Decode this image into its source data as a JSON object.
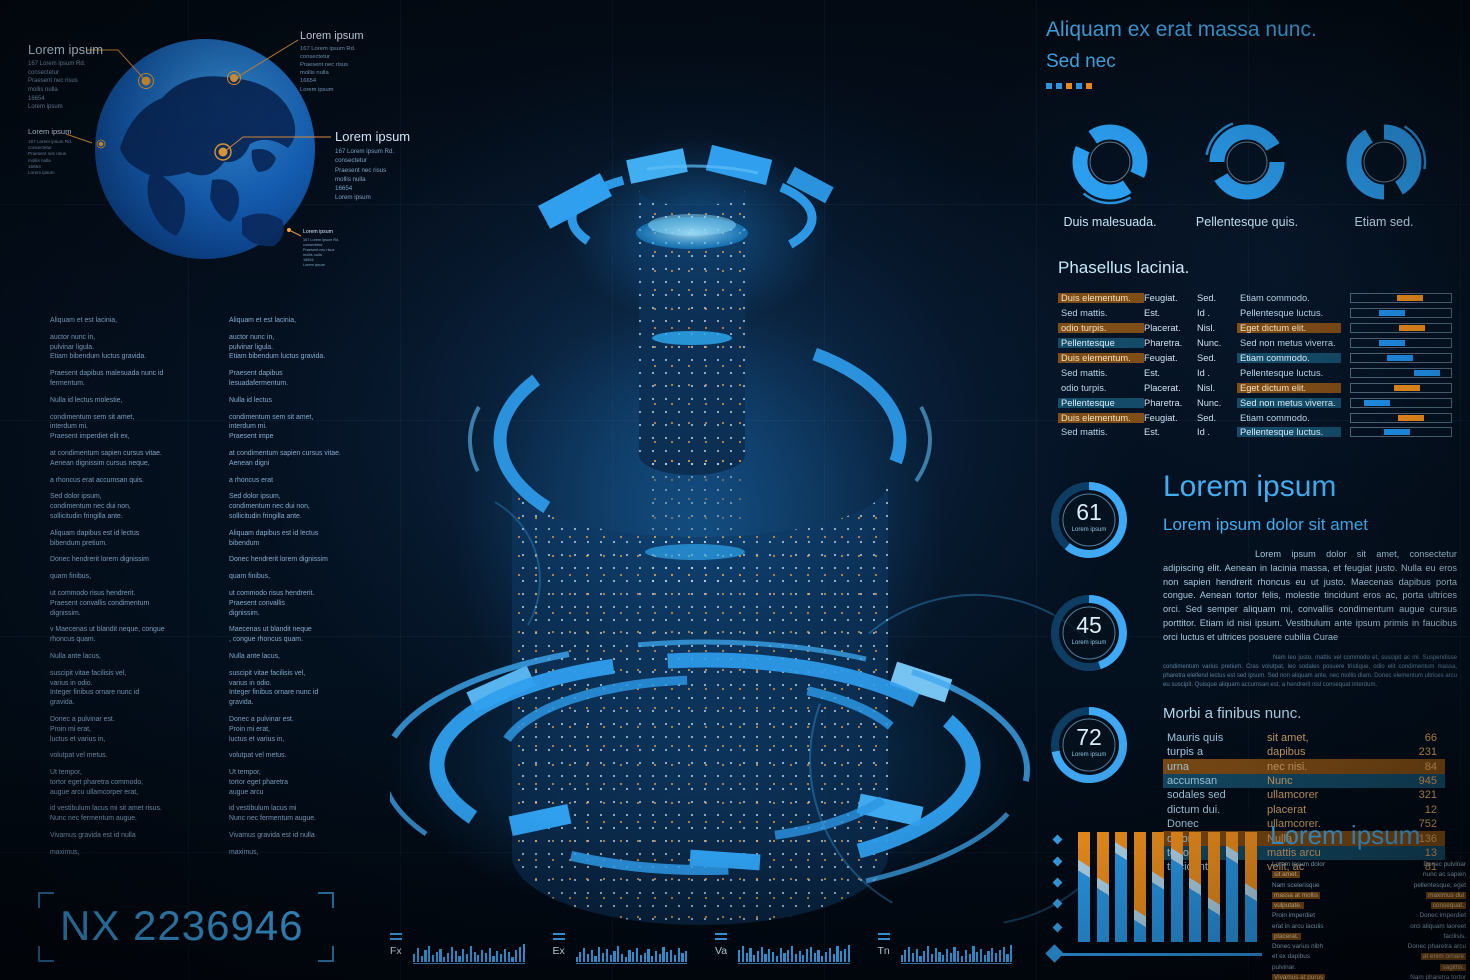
{
  "colors": {
    "blue": "#2e9ff0",
    "orange": "#f7941e",
    "highlight_orange": "#8a5316",
    "highlight_blue": "#165270"
  },
  "serial": {
    "number": "NX 2236946"
  },
  "globe": {
    "callouts": [
      {
        "title": "Lorem ipsum",
        "body": "167 Lorem ipsum Rd.\nconsectetur\nPraesent nec risus\nmollis nulla\n16654\nLorem ipsum"
      },
      {
        "title": "Lorem ipsum",
        "body": "167 Lorem ipsum Rd.\nconsectetur\nPraesent nec risus\nmollis nulla\n16654\nLorem ipsum"
      },
      {
        "title": "Lorem ipsum",
        "body": "167 Lorem ipsum Rd.\nconsectetur\nPraesent nec risus\nmollis nulla\n16654\nLorem ipsum"
      },
      {
        "title": "Lorem ipsum",
        "body": "167 Lorem ipsum Rd.\nconsectetur\nPraesent nec risus\nmollis nulla\n16654\nLorem ipsum"
      },
      {
        "title": "Lorem ipsum",
        "body": "167 Lorem ipsum Rd.\nconsectetur\nPraesent nec risus\nmollis nulla\n16654\nLorem ipsum"
      }
    ]
  },
  "left_columns": {
    "col1": [
      "Aliquam et est lacinia,",
      " auctor nunc in,\npulvinar ligula.\nEtiam bibendum luctus gravida.",
      "Praesent dapibus malesuada nunc id\nfermentum.",
      "Nulla id lectus molestie,",
      "condimentum sem sit amet,\ninterdum mi.\nPraesent imperdiet elit ex,",
      "at condimentum sapien cursus vitae.\nAenean dignissim cursus neque,",
      "a rhoncus erat accumsan quis.",
      "Sed dolor ipsum,\ncondimentum nec dui non,\nsollicitudin fringilla ante.",
      "Aliquam dapibus est id lectus\nbibendum pretium.",
      "Donec hendrerit lorem dignissim",
      "quam finibus,",
      "ut commodo risus hendrerit.\nPraesent convallis condimentum\ndignissim.",
      "v Maecenas ut blandit neque, congue\nrhoncus quam.",
      "Nulla ante lacus,",
      "suscipit vitae facilisis vel,\nvarius in odio.\nInteger finibus ornare nunc id\ngravida.",
      "Donec a pulvinar est.\nProin mi erat,\nluctus et varius in,",
      "volutpat vel metus.",
      "Ut tempor,\ntortor eget pharetra commodo,\naugue arcu ullamcorper erat,",
      "id vestibulum lacus mi sit amet risus.\nNunc nec fermentum augue.",
      "Vivamus gravida est id nulla",
      "maximus,"
    ],
    "col2": [
      "Aliquam et est lacinia,",
      " auctor nunc in,\npulvinar ligula.\nEtiam bibendum luctus gravida.",
      "Praesent dapibus\nlesuadafermentum.",
      "Nulla id lectus",
      "condimentum sem sit amet,\ninterdum mi.\nPraesent impe",
      "at condimentum sapien cursus vitae.\nAenean digni",
      "a rhoncus erat",
      "Sed dolor ipsum,\ncondimentum nec dui non,\nsollicitudin fringilla ante.",
      "Aliquam dapibus est id lectus\nbibendum",
      "Donec hendrerit lorem dignissim",
      "quam finibus,",
      "ut commodo risus hendrerit.\nPraesent convallis\ndignissim.",
      "Maecenas ut blandit neque\n, congue rhoncus quam.",
      "Nulla ante lacus,",
      "suscipit vitae facilisis vel,\nvarius in odio.\nInteger finibus ornare nunc id\ngravida.",
      "Donec a pulvinar est.\nProin mi erat,\nluctus et varius in,",
      "volutpat vel metus.",
      "Ut tempor,\ntortor eget pharetra\naugue arcu",
      "id vestibulum lacus mi\nNunc nec fermentum augue.",
      "Vivamus gravida est id nulla",
      "maximus,"
    ]
  },
  "top_right": {
    "title": "Aliquam ex erat massa nunc.",
    "subtitle": "Sed nec",
    "squares": [
      "blue",
      "blue",
      "orange",
      "blue",
      "orange"
    ],
    "donuts": [
      {
        "label": "Duis malesuada."
      },
      {
        "label": "Pellentesque quis."
      },
      {
        "label": "Etiam sed."
      }
    ]
  },
  "phasellus": {
    "title": "Phasellus lacinia.",
    "rows": [
      {
        "c1": "Duis elementum.",
        "h1": "orange",
        "c2": "Feugiat.",
        "c3": "Sed.",
        "c4": "Etiam commodo.",
        "h4": null,
        "bar": "orange",
        "pos": 0.62
      },
      {
        "c1": "Sed mattis.",
        "h1": null,
        "c2": "Est.",
        "c3": "Id .",
        "c4": "Pellentesque luctus.",
        "h4": null,
        "bar": "blue",
        "pos": 0.38
      },
      {
        "c1": "odio turpis.",
        "h1": "orange",
        "c2": "Placerat.",
        "c3": "Nisl.",
        "c4": "Eget dictum elit.",
        "h4": "orange",
        "bar": "orange",
        "pos": 0.65
      },
      {
        "c1": "Pellentesque",
        "h1": "blue",
        "c2": "Pharetra.",
        "c3": "Nunc.",
        "c4": "Sed non metus viverra.",
        "h4": null,
        "bar": "blue",
        "pos": 0.38
      },
      {
        "c1": "Duis elementum.",
        "h1": "orange",
        "c2": "Feugiat.",
        "c3": "Sed.",
        "c4": "Etiam commodo.",
        "h4": "blue",
        "bar": "blue",
        "pos": 0.48
      },
      {
        "c1": "Sed mattis.",
        "h1": null,
        "c2": "Est.",
        "c3": "Id .",
        "c4": "Pellentesque luctus.",
        "h4": null,
        "bar": "blue",
        "pos": 0.85
      },
      {
        "c1": "odio turpis.",
        "h1": null,
        "c2": "Placerat.",
        "c3": "Nisl.",
        "c4": "Eget dictum elit.",
        "h4": "orange",
        "bar": "orange",
        "pos": 0.58
      },
      {
        "c1": "Pellentesque",
        "h1": "blue",
        "c2": "Pharetra.",
        "c3": "Nunc.",
        "c4": "Sed non metus viverra.",
        "h4": "blue",
        "bar": "blue",
        "pos": 0.17
      },
      {
        "c1": "Duis elementum.",
        "h1": "orange",
        "c2": "Feugiat.",
        "c3": "Sed.",
        "c4": "Etiam commodo.",
        "h4": null,
        "bar": "orange",
        "pos": 0.63
      },
      {
        "c1": "Sed mattis.",
        "h1": null,
        "c2": "Est.",
        "c3": "Id .",
        "c4": "Pellentesque luctus.",
        "h4": "blue",
        "bar": "blue",
        "pos": 0.44
      }
    ]
  },
  "gauges": [
    {
      "value": "61",
      "label": "Lorem ipsum",
      "pct": 61
    },
    {
      "value": "45",
      "label": "Lorem ipsum",
      "pct": 45
    },
    {
      "value": "72",
      "label": "Lorem ipsum",
      "pct": 72
    }
  ],
  "article": {
    "title": "Lorem ipsum",
    "subtitle": "Lorem ipsum dolor sit amet",
    "p1": "Lorem ipsum dolor sit amet, consectetur adipiscing elit. Aenean in lacinia massa, et feugiat justo. Nulla eu eros non sapien hendrerit rhoncus eu ut justo. Maecenas dapibus porta congue. Aenean tortor felis, molestie tincidunt eros ac, porta ultrices orci. Sed semper aliquam mi, convallis condimentum augue cursus porttitor. Etiam id nisi ipsum. Vestibulum ante ipsum primis in faucibus orci luctus et ultrices posuere cubilia Curae",
    "p2": "Nam leo justo, mattis vel commodo et, suscipit ac mi. Suspendisse condimentum varius pretium. Cras volutpat, leo sodales posuere tristique, odio elit condimentum massa, pharetra eleifend lectus est sed ipsum. Sed non aliquam ante, nec mollis diam. Donec elementum ultrices arcu eu suscipit. Quisque aliquam accumsan est, a hendrerit nisl consequat interdum."
  },
  "morbi": {
    "title": "Morbi a finibus nunc.",
    "rows": [
      {
        "a": "Mauris quis",
        "b": "sit amet,",
        "v": "66",
        "hl": null
      },
      {
        "a": "turpis a",
        "b": "dapibus",
        "v": "231",
        "hl": null
      },
      {
        "a": "urna",
        "b": "nec nisi.",
        "v": "84",
        "hl": "orange"
      },
      {
        "a": "accumsan",
        "b": "Nunc",
        "v": "945",
        "hl": "blue"
      },
      {
        "a": "sodales sed",
        "b": "ullamcorer",
        "v": "321",
        "hl": null
      },
      {
        "a": "dictum dui.",
        "b": "placerat",
        "v": "12",
        "hl": null
      },
      {
        "a": "Donec",
        "b": "ullamcorer.",
        "v": "752",
        "hl": null
      },
      {
        "a": "dolor",
        "b": "Nulla",
        "v": "136",
        "hl": "orange"
      },
      {
        "a": "tortor,",
        "b": "mattis arcu",
        "v": "13",
        "hl": "blue"
      },
      {
        "a": "tincidunt ut",
        "b": "velit, ac",
        "v": "81",
        "hl": null
      }
    ]
  },
  "bottom_chart": {
    "title": "Lorem ipsum",
    "bars": [
      {
        "split": 30
      },
      {
        "split": 45
      },
      {
        "split": 15
      },
      {
        "split": 72
      },
      {
        "split": 40
      },
      {
        "split": 20
      },
      {
        "split": 45
      },
      {
        "split": 62
      },
      {
        "split": 18
      },
      {
        "split": 50
      }
    ],
    "col_left": [
      {
        "text": "Lorem ipsum dolor",
        "hl": false
      },
      {
        "text": "sit amet.",
        "hl": true
      },
      {
        "text": "Nam scelerisque",
        "hl": false
      },
      {
        "text": "massa at mollis",
        "hl": true
      },
      {
        "text": "vulputate.",
        "hl": true
      },
      {
        "text": "Proin imperdiet",
        "hl": false
      },
      {
        "text": "erat in arcu iaculis",
        "hl": false
      },
      {
        "text": "placerat.",
        "hl": true
      },
      {
        "text": "Donec varius nibh",
        "hl": false
      },
      {
        "text": "et ex dapibus",
        "hl": false
      },
      {
        "text": "pulvinar.",
        "hl": false
      },
      {
        "text": "Vivamus at purus",
        "hl": true
      }
    ],
    "col_right": [
      {
        "text": "Donec pulvinar",
        "hl": false
      },
      {
        "text": "nunc ac sapien",
        "hl": false
      },
      {
        "text": "pellentesque, eget",
        "hl": false
      },
      {
        "text": "maximus dui",
        "hl": true
      },
      {
        "text": "consequat.",
        "hl": true
      },
      {
        "text": "Donec imperdiet",
        "hl": false
      },
      {
        "text": "orci aliquam laoreet",
        "hl": false
      },
      {
        "text": "facilisis.",
        "hl": false
      },
      {
        "text": "Donec pharetra arcu",
        "hl": false
      },
      {
        "text": "at enim ornare",
        "hl": true
      },
      {
        "text": "sagittis.",
        "hl": true
      },
      {
        "text": "Nam pharetra tortor",
        "hl": false
      }
    ]
  },
  "equalizers": [
    {
      "label": "Fx",
      "bars": [
        8,
        14,
        6,
        12,
        16,
        7,
        10,
        13,
        5,
        9,
        15,
        11,
        6,
        13,
        8,
        16,
        10,
        7,
        12,
        9,
        14,
        6,
        11,
        8,
        13,
        10,
        5,
        12,
        15,
        18
      ]
    },
    {
      "label": "Ex",
      "bars": [
        5,
        10,
        14,
        8,
        12,
        6,
        15,
        9,
        13,
        7,
        11,
        16,
        8,
        5,
        12,
        10,
        14,
        7,
        9,
        13,
        6,
        11,
        8,
        15,
        10,
        12,
        7,
        14,
        9,
        11
      ]
    },
    {
      "label": "Va",
      "bars": [
        12,
        16,
        9,
        14,
        7,
        11,
        15,
        8,
        13,
        10,
        6,
        14,
        9,
        12,
        16,
        8,
        11,
        7,
        13,
        15,
        9,
        12,
        6,
        10,
        14,
        8,
        16,
        11,
        13,
        17
      ]
    },
    {
      "label": "Tn",
      "bars": [
        7,
        12,
        15,
        9,
        13,
        6,
        11,
        16,
        8,
        14,
        10,
        7,
        13,
        9,
        15,
        11,
        6,
        12,
        8,
        16,
        10,
        13,
        7,
        11,
        14,
        9,
        12,
        15,
        8,
        17
      ]
    }
  ]
}
